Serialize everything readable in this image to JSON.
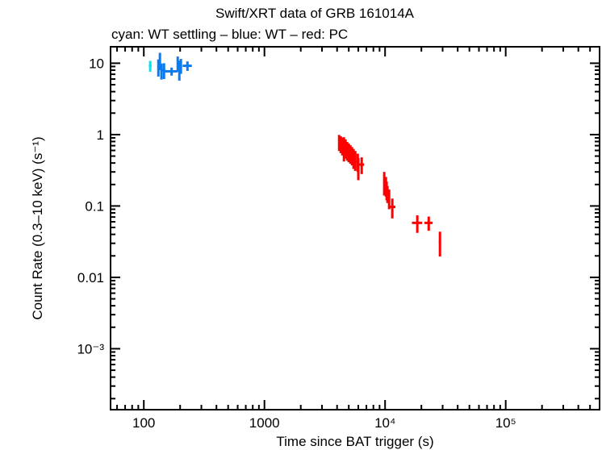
{
  "chart_data": {
    "type": "scatter",
    "title": "Swift/XRT data of GRB 161014A",
    "subtitle": "cyan: WT settling – blue: WT – red: PC",
    "xlabel": "Time since BAT trigger (s)",
    "ylabel": "Count Rate (0.3–10 keV) (s⁻¹)",
    "xscale": "log",
    "yscale": "log",
    "xlim": [
      53,
      600000
    ],
    "ylim": [
      0.00014,
      17
    ],
    "grid": false,
    "xticks": [
      {
        "v": 100,
        "label": "100"
      },
      {
        "v": 1000,
        "label": "1000"
      },
      {
        "v": 10000,
        "label": "10⁴"
      },
      {
        "v": 100000,
        "label": "10⁵"
      }
    ],
    "yticks": [
      {
        "v": 10,
        "label": "10"
      },
      {
        "v": 1,
        "label": "1"
      },
      {
        "v": 0.1,
        "label": "0.1"
      },
      {
        "v": 0.01,
        "label": "0.01"
      },
      {
        "v": 0.001,
        "label": "10⁻³"
      }
    ],
    "series": [
      {
        "mode": "WT settling",
        "color": "#00e5ee",
        "points": [
          {
            "x": 113,
            "xerr": 3,
            "y": 9.2,
            "yerr": 1.6
          }
        ]
      },
      {
        "mode": "WT",
        "color": "#0a7cf0",
        "points": [
          {
            "x": 132,
            "xerr": 2,
            "y": 8.9,
            "yerr": 2.4
          },
          {
            "x": 136,
            "xerr": 2,
            "y": 11,
            "yerr": 3
          },
          {
            "x": 140,
            "xerr": 2,
            "y": 7.9,
            "yerr": 2
          },
          {
            "x": 147,
            "xerr": 4,
            "y": 8.0,
            "yerr": 2
          },
          {
            "x": 170,
            "xerr": 20,
            "y": 7.7,
            "yerr": 1
          },
          {
            "x": 191,
            "xerr": 3,
            "y": 10,
            "yerr": 2.4
          },
          {
            "x": 197,
            "xerr": 3,
            "y": 8.3,
            "yerr": 2.6
          },
          {
            "x": 203,
            "xerr": 3,
            "y": 9.3,
            "yerr": 2.2
          },
          {
            "x": 230,
            "xerr": 20,
            "y": 9.2,
            "yerr": 1.4
          }
        ]
      },
      {
        "mode": "PC",
        "color": "#ff0000",
        "points": [
          {
            "x": 4160,
            "xerr": 60,
            "y": 0.79,
            "yerr": 0.2
          },
          {
            "x": 4290,
            "xerr": 60,
            "y": 0.75,
            "yerr": 0.2
          },
          {
            "x": 4420,
            "xerr": 60,
            "y": 0.71,
            "yerr": 0.2
          },
          {
            "x": 4560,
            "xerr": 60,
            "y": 0.67,
            "yerr": 0.25
          },
          {
            "x": 4700,
            "xerr": 60,
            "y": 0.66,
            "yerr": 0.2
          },
          {
            "x": 4850,
            "xerr": 60,
            "y": 0.61,
            "yerr": 0.18
          },
          {
            "x": 5000,
            "xerr": 60,
            "y": 0.58,
            "yerr": 0.17
          },
          {
            "x": 5160,
            "xerr": 60,
            "y": 0.55,
            "yerr": 0.16
          },
          {
            "x": 5320,
            "xerr": 60,
            "y": 0.52,
            "yerr": 0.15
          },
          {
            "x": 5480,
            "xerr": 80,
            "y": 0.48,
            "yerr": 0.15
          },
          {
            "x": 5660,
            "xerr": 80,
            "y": 0.45,
            "yerr": 0.14
          },
          {
            "x": 5930,
            "xerr": 150,
            "y": 0.42,
            "yerr": 0.12
          },
          {
            "x": 6000,
            "xerr": 60,
            "y": 0.35,
            "yerr": 0.12
          },
          {
            "x": 6400,
            "xerr": 300,
            "y": 0.38,
            "yerr": 0.1
          },
          {
            "x": 9840,
            "xerr": 150,
            "y": 0.22,
            "yerr": 0.08
          },
          {
            "x": 10160,
            "xerr": 150,
            "y": 0.195,
            "yerr": 0.06
          },
          {
            "x": 10300,
            "xerr": 150,
            "y": 0.17,
            "yerr": 0.05
          },
          {
            "x": 10470,
            "xerr": 150,
            "y": 0.15,
            "yerr": 0.04
          },
          {
            "x": 10800,
            "xerr": 200,
            "y": 0.13,
            "yerr": 0.04
          },
          {
            "x": 11480,
            "xerr": 700,
            "y": 0.097,
            "yerr": 0.03
          },
          {
            "x": 18500,
            "xerr": 1800,
            "y": 0.058,
            "yerr": 0.016
          },
          {
            "x": 23000,
            "xerr": 1800,
            "y": 0.058,
            "yerr": 0.013
          },
          {
            "x": 28500,
            "xerr": 600,
            "y": 0.0316,
            "yerr": 0.012
          }
        ]
      }
    ]
  }
}
